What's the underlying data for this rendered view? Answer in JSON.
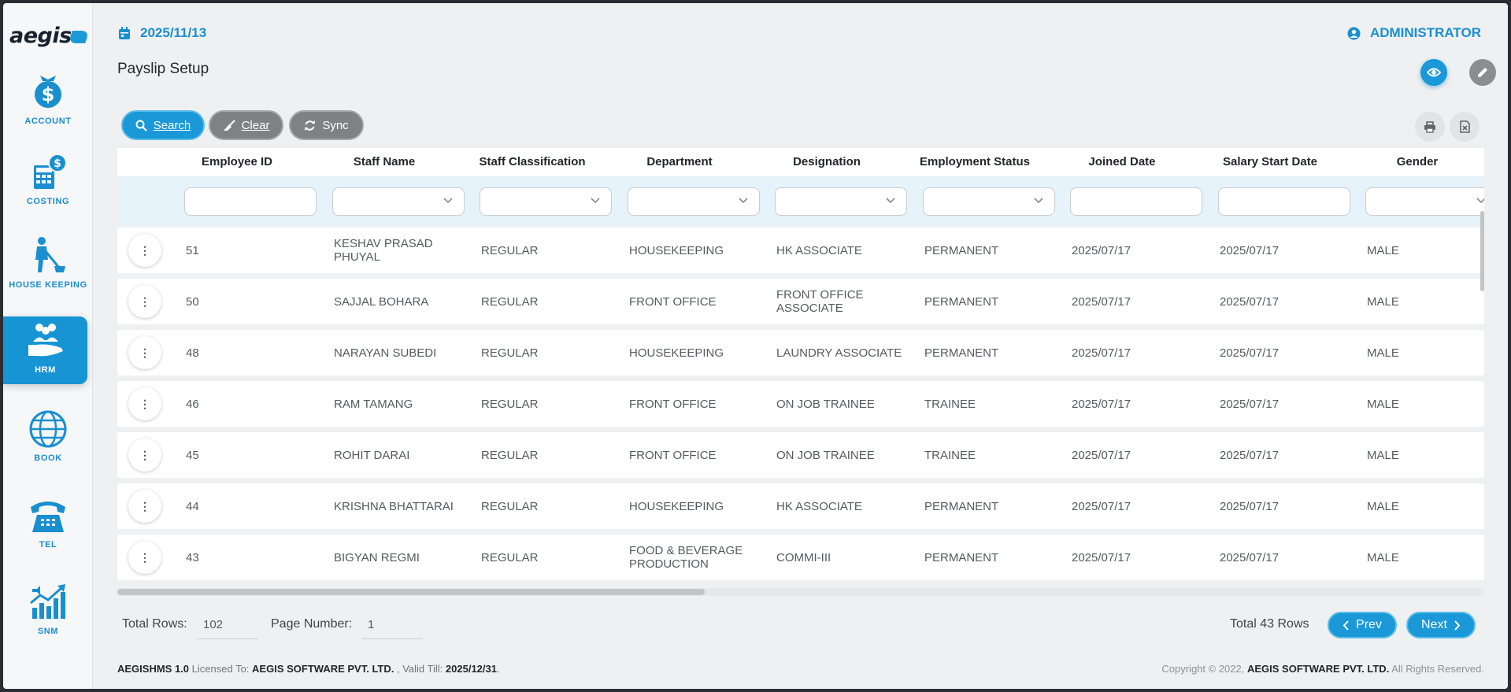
{
  "brand": {
    "logo_text": "aegis"
  },
  "sidebar": {
    "items": [
      {
        "label": "ACCOUNT",
        "icon": "dollar-bag-icon"
      },
      {
        "label": "COSTING",
        "icon": "calculator-icon"
      },
      {
        "label": "HOUSE KEEPING",
        "icon": "cleaning-person-icon"
      },
      {
        "label": "HRM",
        "icon": "people-hand-icon",
        "active": true
      },
      {
        "label": "BOOK",
        "icon": "globe-icon"
      },
      {
        "label": "TEL",
        "icon": "telephone-icon"
      },
      {
        "label": "SNM",
        "icon": "growth-chart-icon"
      }
    ]
  },
  "header": {
    "date": "2025/11/13",
    "user": "ADMINISTRATOR",
    "page_title": "Payslip Setup"
  },
  "toolbar": {
    "search_label": "Search",
    "clear_label": "Clear",
    "sync_label": "Sync"
  },
  "grid": {
    "columns": [
      "Employee ID",
      "Staff Name",
      "Staff Classification",
      "Department",
      "Designation",
      "Employment Status",
      "Joined Date",
      "Salary Start Date",
      "Gender"
    ],
    "rows": [
      {
        "id": "51",
        "name": "KESHAV PRASAD PHUYAL",
        "classification": "REGULAR",
        "department": "HOUSEKEEPING",
        "designation": "HK ASSOCIATE",
        "status": "PERMANENT",
        "joined": "2025/07/17",
        "salary_start": "2025/07/17",
        "gender": "MALE"
      },
      {
        "id": "50",
        "name": "SAJJAL BOHARA",
        "classification": "REGULAR",
        "department": "FRONT OFFICE",
        "designation": "FRONT OFFICE ASSOCIATE",
        "status": "PERMANENT",
        "joined": "2025/07/17",
        "salary_start": "2025/07/17",
        "gender": "MALE"
      },
      {
        "id": "48",
        "name": "NARAYAN SUBEDI",
        "classification": "REGULAR",
        "department": "HOUSEKEEPING",
        "designation": "LAUNDRY ASSOCIATE",
        "status": "PERMANENT",
        "joined": "2025/07/17",
        "salary_start": "2025/07/17",
        "gender": "MALE"
      },
      {
        "id": "46",
        "name": "RAM TAMANG",
        "classification": "REGULAR",
        "department": "FRONT OFFICE",
        "designation": "ON JOB TRAINEE",
        "status": "TRAINEE",
        "joined": "2025/07/17",
        "salary_start": "2025/07/17",
        "gender": "MALE"
      },
      {
        "id": "45",
        "name": "ROHIT DARAI",
        "classification": "REGULAR",
        "department": "FRONT OFFICE",
        "designation": "ON JOB TRAINEE",
        "status": "TRAINEE",
        "joined": "2025/07/17",
        "salary_start": "2025/07/17",
        "gender": "MALE"
      },
      {
        "id": "44",
        "name": "KRISHNA BHATTARAI",
        "classification": "REGULAR",
        "department": "HOUSEKEEPING",
        "designation": "HK ASSOCIATE",
        "status": "PERMANENT",
        "joined": "2025/07/17",
        "salary_start": "2025/07/17",
        "gender": "MALE"
      },
      {
        "id": "43",
        "name": "BIGYAN REGMI",
        "classification": "REGULAR",
        "department": "FOOD & BEVERAGE PRODUCTION",
        "designation": "COMMI-III",
        "status": "PERMANENT",
        "joined": "2025/07/17",
        "salary_start": "2025/07/17",
        "gender": "MALE"
      }
    ],
    "row_menu_glyph": "⋮"
  },
  "pager": {
    "total_rows_label": "Total Rows:",
    "total_rows_value": "102",
    "page_number_label": "Page Number:",
    "page_number_value": "1",
    "total_shown": "Total 43 Rows",
    "prev_label": "Prev",
    "next_label": "Next"
  },
  "footer": {
    "product": "AEGISHMS 1.0",
    "licensed_to_label": "Licensed To:",
    "licensee": "AEGIS SOFTWARE PVT. LTD.",
    "valid_till_label": ", Valid Till:",
    "valid_till": "2025/12/31",
    "copyright_prefix": "Copyright © 2022,",
    "copyright_owner": "AEGIS SOFTWARE PVT. LTD.",
    "rights": "All Rights Reserved."
  },
  "colors": {
    "accent": "#1a98d8",
    "grey_button": "#7f8285",
    "filter_row": "#e6f3fb"
  }
}
